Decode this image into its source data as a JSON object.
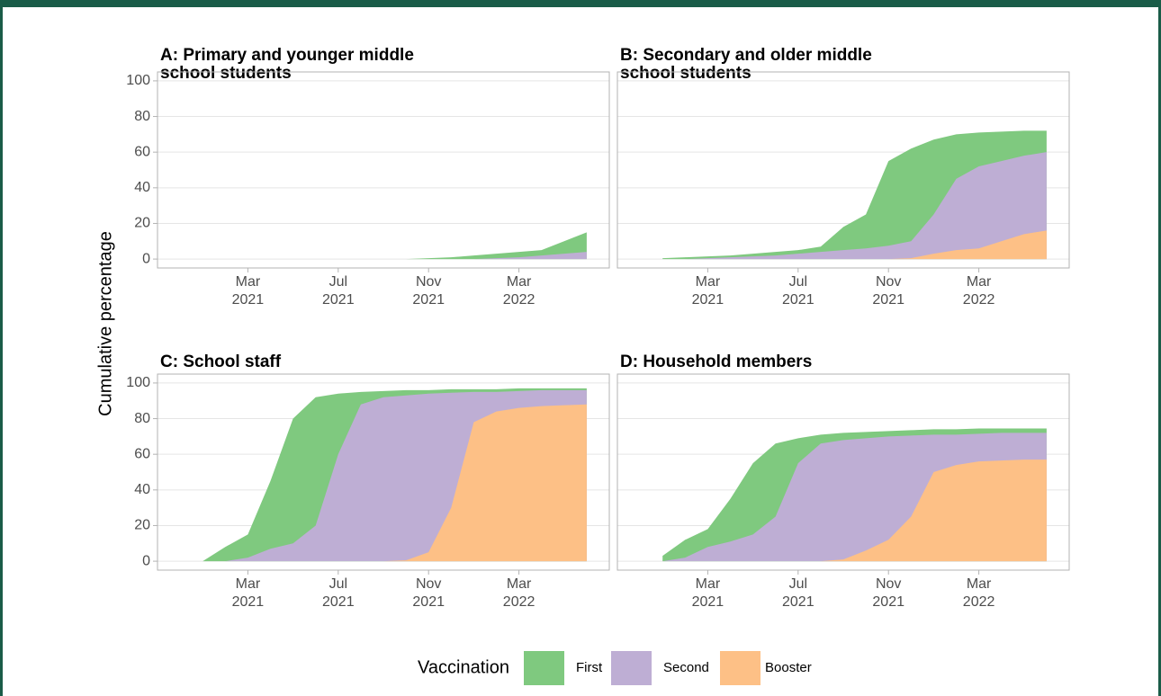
{
  "y_label": "Cumulative percentage",
  "legend_title": "Vaccination",
  "chart_data": [
    {
      "type": "area",
      "title": "A: Primary and younger middle\nschool students",
      "x": [
        "2021-01",
        "2021-02",
        "2021-03",
        "2021-04",
        "2021-05",
        "2021-06",
        "2021-07",
        "2021-08",
        "2021-09",
        "2021-10",
        "2021-11",
        "2021-12",
        "2022-01",
        "2022-02",
        "2022-03",
        "2022-04",
        "2022-05",
        "2022-06"
      ],
      "series": [
        {
          "name": "First",
          "color": "#7fc97f",
          "values": [
            0,
            0,
            0,
            0,
            0,
            0,
            0,
            0,
            0,
            0,
            0.5,
            1,
            2,
            3,
            4,
            5,
            10,
            15
          ]
        },
        {
          "name": "Second",
          "color": "#beaed4",
          "values": [
            0,
            0,
            0,
            0,
            0,
            0,
            0,
            0,
            0,
            0,
            0,
            0,
            0,
            0.5,
            1,
            2,
            3,
            4
          ]
        },
        {
          "name": "Booster",
          "color": "#fdc086",
          "values": [
            0,
            0,
            0,
            0,
            0,
            0,
            0,
            0,
            0,
            0,
            0,
            0,
            0,
            0,
            0,
            0,
            0,
            0
          ]
        }
      ],
      "xlim": [
        "2020-11",
        "2022-07"
      ],
      "xticks": [
        {
          "value": "2021-03",
          "label": "Mar\n2021"
        },
        {
          "value": "2021-07",
          "label": "Jul\n2021"
        },
        {
          "value": "2021-11",
          "label": "Nov\n2021"
        },
        {
          "value": "2022-03",
          "label": "Mar\n2022"
        }
      ],
      "ylim": [
        -5,
        105
      ],
      "yticks": [
        0,
        20,
        40,
        60,
        80,
        100
      ],
      "grid": true
    },
    {
      "type": "area",
      "title": "B: Secondary and older middle\nschool students",
      "x": [
        "2021-01",
        "2021-02",
        "2021-03",
        "2021-04",
        "2021-05",
        "2021-06",
        "2021-07",
        "2021-08",
        "2021-09",
        "2021-10",
        "2021-11",
        "2021-12",
        "2022-01",
        "2022-02",
        "2022-03",
        "2022-04",
        "2022-05",
        "2022-06"
      ],
      "series": [
        {
          "name": "First",
          "color": "#7fc97f",
          "values": [
            0.5,
            1,
            1.5,
            2,
            3,
            4,
            5,
            7,
            18,
            25,
            55,
            62,
            67,
            70,
            71,
            71.5,
            72,
            72
          ]
        },
        {
          "name": "Second",
          "color": "#beaed4",
          "values": [
            0,
            0,
            0.5,
            1,
            1.5,
            2,
            3,
            4,
            5,
            6,
            7.5,
            10,
            25,
            45,
            52,
            55,
            58,
            60
          ]
        },
        {
          "name": "Booster",
          "color": "#fdc086",
          "values": [
            0,
            0,
            0,
            0,
            0,
            0,
            0,
            0,
            0,
            0,
            0,
            0.5,
            3,
            5,
            6,
            10,
            14,
            16
          ]
        }
      ],
      "xlim": [
        "2020-11",
        "2022-07"
      ],
      "xticks": [
        {
          "value": "2021-03",
          "label": "Mar\n2021"
        },
        {
          "value": "2021-07",
          "label": "Jul\n2021"
        },
        {
          "value": "2021-11",
          "label": "Nov\n2021"
        },
        {
          "value": "2022-03",
          "label": "Mar\n2022"
        }
      ],
      "ylim": [
        -5,
        105
      ],
      "yticks": [
        0,
        20,
        40,
        60,
        80,
        100
      ],
      "grid": true
    },
    {
      "type": "area",
      "title": "C: School staff",
      "x": [
        "2021-01",
        "2021-02",
        "2021-03",
        "2021-04",
        "2021-05",
        "2021-06",
        "2021-07",
        "2021-08",
        "2021-09",
        "2021-10",
        "2021-11",
        "2021-12",
        "2022-01",
        "2022-02",
        "2022-03",
        "2022-04",
        "2022-05",
        "2022-06"
      ],
      "series": [
        {
          "name": "First",
          "color": "#7fc97f",
          "values": [
            0,
            8,
            15,
            45,
            80,
            92,
            94,
            95,
            95.5,
            96,
            96,
            96.5,
            96.5,
            96.5,
            97,
            97,
            97,
            97
          ]
        },
        {
          "name": "Second",
          "color": "#beaed4",
          "values": [
            0,
            0,
            2,
            7,
            10,
            20,
            60,
            88,
            92,
            93,
            94,
            94.5,
            95,
            95,
            95.5,
            96,
            96,
            96
          ]
        },
        {
          "name": "Booster",
          "color": "#fdc086",
          "values": [
            0,
            0,
            0,
            0,
            0,
            0,
            0,
            0,
            0,
            0.5,
            5,
            30,
            78,
            84,
            86,
            87,
            87.5,
            88
          ]
        }
      ],
      "xlim": [
        "2020-11",
        "2022-07"
      ],
      "xticks": [
        {
          "value": "2021-03",
          "label": "Mar\n2021"
        },
        {
          "value": "2021-07",
          "label": "Jul\n2021"
        },
        {
          "value": "2021-11",
          "label": "Nov\n2021"
        },
        {
          "value": "2022-03",
          "label": "Mar\n2022"
        }
      ],
      "ylim": [
        -5,
        105
      ],
      "yticks": [
        0,
        20,
        40,
        60,
        80,
        100
      ],
      "grid": true
    },
    {
      "type": "area",
      "title": "D: Household members",
      "x": [
        "2021-01",
        "2021-02",
        "2021-03",
        "2021-04",
        "2021-05",
        "2021-06",
        "2021-07",
        "2021-08",
        "2021-09",
        "2021-10",
        "2021-11",
        "2021-12",
        "2022-01",
        "2022-02",
        "2022-03",
        "2022-04",
        "2022-05",
        "2022-06"
      ],
      "series": [
        {
          "name": "First",
          "color": "#7fc97f",
          "values": [
            3,
            12,
            18,
            35,
            55,
            66,
            69,
            71,
            72,
            72.5,
            73,
            73.5,
            74,
            74,
            74.5,
            74.5,
            74.5,
            74.5
          ]
        },
        {
          "name": "Second",
          "color": "#beaed4",
          "values": [
            0,
            2,
            8,
            11,
            15,
            25,
            55,
            66,
            68,
            69,
            70,
            70.5,
            71,
            71,
            71.5,
            72,
            72,
            72
          ]
        },
        {
          "name": "Booster",
          "color": "#fdc086",
          "values": [
            0,
            0,
            0,
            0,
            0,
            0,
            0,
            0,
            1,
            6,
            12,
            25,
            50,
            54,
            56,
            56.5,
            57,
            57
          ]
        }
      ],
      "xlim": [
        "2020-11",
        "2022-07"
      ],
      "xticks": [
        {
          "value": "2021-03",
          "label": "Mar\n2021"
        },
        {
          "value": "2021-07",
          "label": "Jul\n2021"
        },
        {
          "value": "2021-11",
          "label": "Nov\n2021"
        },
        {
          "value": "2022-03",
          "label": "Mar\n2022"
        }
      ],
      "ylim": [
        -5,
        105
      ],
      "yticks": [
        0,
        20,
        40,
        60,
        80,
        100
      ],
      "grid": true
    }
  ]
}
